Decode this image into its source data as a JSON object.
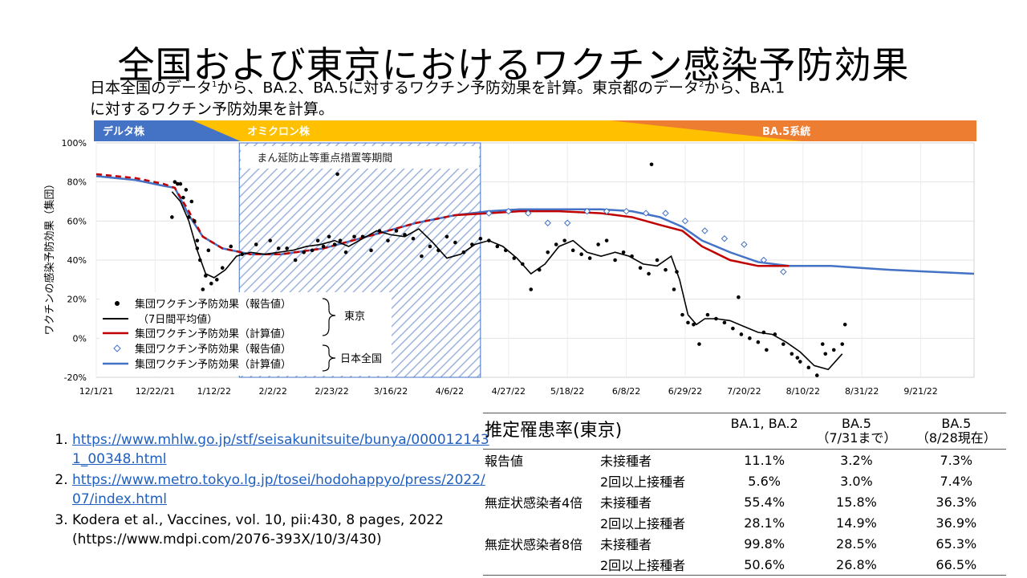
{
  "title": "全国および東京におけるワクチン感染予防効果",
  "subtitle": {
    "line1a": "日本全国のデータ",
    "sup1": "1",
    "line1b": "から、BA.2、BA.5に対するワクチン予防効果を計算。東京都のデータ",
    "sup2": "2",
    "line1c": "から、BA.1",
    "line2": "に対するワクチン予防効果を計算。"
  },
  "variant_bar": [
    {
      "label": "デルタ株",
      "color": "#4472C4"
    },
    {
      "label": "オミクロン株",
      "color": "#FFC000"
    },
    {
      "label": "BA.5系統",
      "color": "#ED7D31"
    }
  ],
  "period_label": "まん延防止等重点措置等期間",
  "legend": {
    "items": [
      {
        "label": "集団ワクチン予防効果（報告値）",
        "marker": "dot"
      },
      {
        "label": "（7日間平均値）",
        "marker": "black-line"
      },
      {
        "label": "集団ワクチン予防効果（計算値）",
        "marker": "red-line"
      },
      {
        "label": "集団ワクチン予防効果（報告値）",
        "marker": "diamond"
      },
      {
        "label": "集団ワクチン予防効果（計算値）",
        "marker": "blue-line"
      }
    ],
    "group_tokyo": "東京",
    "group_national": "日本全国"
  },
  "colors": {
    "red": "#C00000",
    "blue": "#4472C4",
    "black": "#000000",
    "hatch": "#8EA9DB"
  },
  "chart_data": {
    "type": "line",
    "ylabel": "ワクチンの感染予防効果（集団）",
    "ylim": [
      -20,
      100
    ],
    "y_ticks": [
      "100%",
      "80%",
      "60%",
      "40%",
      "20%",
      "0%",
      "-20%"
    ],
    "x_ticks": [
      "12/1/21",
      "12/22/21",
      "1/12/22",
      "2/2/22",
      "2/23/22",
      "3/16/22",
      "4/6/22",
      "4/27/22",
      "5/18/22",
      "6/8/22",
      "6/29/22",
      "7/20/22",
      "8/10/22",
      "8/31/22",
      "9/21/22"
    ],
    "x_start": "2021-12-01",
    "x_end": "2022-10-10",
    "period": {
      "start": "2022-01-21",
      "end": "2022-04-17"
    },
    "series": [
      {
        "name": "集団ワクチン予防効果（計算値）",
        "group": "日本全国",
        "kind": "line",
        "color": "#4472C4",
        "x": [
          "2021-12-01",
          "2021-12-15",
          "2021-12-25",
          "2021-12-29",
          "2022-01-03",
          "2022-01-08",
          "2022-01-15",
          "2022-01-25",
          "2022-02-05",
          "2022-02-20",
          "2022-03-10",
          "2022-03-25",
          "2022-04-08",
          "2022-04-20",
          "2022-05-01",
          "2022-05-15",
          "2022-05-30",
          "2022-06-10",
          "2022-06-20",
          "2022-06-28",
          "2022-07-05",
          "2022-07-15",
          "2022-07-25",
          "2022-08-05",
          "2022-08-20",
          "2022-09-10",
          "2022-10-10"
        ],
        "y": [
          83,
          81,
          78,
          77,
          63,
          52,
          46,
          43,
          43,
          46,
          53,
          59,
          63,
          65,
          66,
          66,
          66,
          65,
          62,
          57,
          50,
          44,
          39,
          37,
          37,
          35,
          33
        ]
      },
      {
        "name": "集団ワクチン予防効果（計算値）",
        "group": "東京",
        "kind": "line",
        "color": "#C00000",
        "x": [
          "2021-12-01",
          "2021-12-15",
          "2021-12-25",
          "2021-12-29",
          "2022-01-03",
          "2022-01-08",
          "2022-01-15",
          "2022-01-25",
          "2022-02-05",
          "2022-02-20",
          "2022-03-10",
          "2022-03-25",
          "2022-04-08",
          "2022-04-20",
          "2022-05-01",
          "2022-05-15",
          "2022-05-30",
          "2022-06-10",
          "2022-06-20",
          "2022-06-28",
          "2022-07-05",
          "2022-07-15",
          "2022-07-25",
          "2022-08-05"
        ],
        "y": [
          84,
          82,
          79,
          77,
          65,
          52,
          46,
          43,
          43,
          46,
          53,
          59,
          63,
          64,
          65,
          65,
          64,
          62,
          58,
          55,
          47,
          40,
          37,
          37
        ],
        "dashed_until": "2022-04-08"
      },
      {
        "name": "（7日間平均値）",
        "group": "東京",
        "kind": "line",
        "color": "#000000",
        "x": [
          "2021-12-28",
          "2021-12-31",
          "2022-01-03",
          "2022-01-06",
          "2022-01-09",
          "2022-01-12",
          "2022-01-16",
          "2022-01-20",
          "2022-01-25",
          "2022-01-30",
          "2022-02-04",
          "2022-02-09",
          "2022-02-14",
          "2022-02-19",
          "2022-02-24",
          "2022-03-01",
          "2022-03-06",
          "2022-03-11",
          "2022-03-16",
          "2022-03-21",
          "2022-03-26",
          "2022-03-31",
          "2022-04-05",
          "2022-04-10",
          "2022-04-15",
          "2022-04-20",
          "2022-04-25",
          "2022-04-30",
          "2022-05-05",
          "2022-05-10",
          "2022-05-15",
          "2022-05-20",
          "2022-05-25",
          "2022-05-30",
          "2022-06-04",
          "2022-06-09",
          "2022-06-14",
          "2022-06-19",
          "2022-06-24",
          "2022-06-27",
          "2022-06-30",
          "2022-07-03",
          "2022-07-06",
          "2022-07-10",
          "2022-07-15",
          "2022-07-20",
          "2022-07-25",
          "2022-07-30",
          "2022-08-04",
          "2022-08-09",
          "2022-08-14",
          "2022-08-19",
          "2022-08-24"
        ],
        "y": [
          75,
          70,
          60,
          45,
          33,
          31,
          35,
          42,
          44,
          43,
          44,
          45,
          47,
          48,
          50,
          47,
          51,
          55,
          53,
          52,
          56,
          49,
          41,
          43,
          48,
          50,
          47,
          41,
          33,
          38,
          47,
          50,
          44,
          42,
          44,
          42,
          38,
          37,
          42,
          30,
          12,
          7,
          10,
          10,
          9,
          6,
          3,
          2,
          -2,
          -7,
          -14,
          -16,
          -8
        ]
      },
      {
        "name": "集団ワクチン予防効果（報告値）",
        "group": "東京",
        "kind": "scatter",
        "marker": "dot",
        "x": [
          "2021-12-28",
          "2021-12-29",
          "2021-12-30",
          "2021-12-31",
          "2022-01-01",
          "2022-01-02",
          "2022-01-03",
          "2022-01-04",
          "2022-01-05",
          "2022-01-06",
          "2022-01-07",
          "2022-01-08",
          "2022-01-09",
          "2022-01-10",
          "2022-01-11",
          "2022-01-13",
          "2022-01-15",
          "2022-01-18",
          "2022-01-22",
          "2022-01-27",
          "2022-02-01",
          "2022-02-04",
          "2022-02-07",
          "2022-02-10",
          "2022-02-13",
          "2022-02-16",
          "2022-02-18",
          "2022-02-20",
          "2022-02-22",
          "2022-02-24",
          "2022-02-26",
          "2022-02-28",
          "2022-03-03",
          "2022-03-06",
          "2022-03-09",
          "2022-03-12",
          "2022-03-15",
          "2022-03-18",
          "2022-03-21",
          "2022-03-24",
          "2022-03-27",
          "2022-03-30",
          "2022-04-02",
          "2022-04-05",
          "2022-04-08",
          "2022-04-11",
          "2022-04-14",
          "2022-04-17",
          "2022-04-20",
          "2022-04-23",
          "2022-04-26",
          "2022-04-29",
          "2022-05-02",
          "2022-05-05",
          "2022-05-08",
          "2022-05-11",
          "2022-05-14",
          "2022-05-17",
          "2022-05-20",
          "2022-05-23",
          "2022-05-26",
          "2022-05-29",
          "2022-06-01",
          "2022-06-04",
          "2022-06-07",
          "2022-06-10",
          "2022-06-13",
          "2022-06-16",
          "2022-06-19",
          "2022-06-22",
          "2022-06-25",
          "2022-06-26",
          "2022-06-28",
          "2022-06-30",
          "2022-07-02",
          "2022-07-04",
          "2022-07-07",
          "2022-07-10",
          "2022-07-13",
          "2022-07-16",
          "2022-07-19",
          "2022-07-22",
          "2022-07-25",
          "2022-07-28",
          "2022-07-31",
          "2022-08-03",
          "2022-08-06",
          "2022-08-09",
          "2022-08-12",
          "2022-08-15",
          "2022-08-18",
          "2022-08-21",
          "2022-08-24",
          "2022-08-25",
          "2022-02-25",
          "2022-06-17",
          "2022-01-06",
          "2022-07-18",
          "2022-07-27",
          "2022-08-08",
          "2022-08-17"
        ],
        "y": [
          62,
          80,
          79,
          79,
          72,
          76,
          62,
          70,
          60,
          50,
          40,
          25,
          32,
          45,
          28,
          30,
          36,
          47,
          43,
          48,
          50,
          46,
          46,
          40,
          44,
          45,
          50,
          47,
          52,
          48,
          50,
          44,
          52,
          52,
          45,
          55,
          50,
          55,
          53,
          51,
          42,
          47,
          45,
          52,
          49,
          44,
          48,
          51,
          50,
          47,
          45,
          41,
          38,
          25,
          35,
          44,
          48,
          50,
          45,
          43,
          41,
          48,
          50,
          40,
          44,
          42,
          36,
          33,
          40,
          35,
          25,
          34,
          12,
          8,
          7,
          -3,
          12,
          10,
          8,
          5,
          2,
          0,
          -2,
          -6,
          2,
          -3,
          -8,
          -12,
          -15,
          -19,
          -8,
          -6,
          -3,
          7,
          84,
          89,
          46,
          21,
          3,
          -10,
          -3
        ]
      },
      {
        "name": "集団ワクチン予防効果（報告値）",
        "group": "日本全国",
        "kind": "scatter",
        "marker": "diamond",
        "x": [
          "2022-04-20",
          "2022-04-27",
          "2022-05-04",
          "2022-05-11",
          "2022-05-18",
          "2022-05-25",
          "2022-06-01",
          "2022-06-08",
          "2022-06-15",
          "2022-06-22",
          "2022-06-29",
          "2022-07-06",
          "2022-07-13",
          "2022-07-20",
          "2022-07-27",
          "2022-08-03"
        ],
        "y": [
          64,
          65,
          64,
          59,
          59,
          65,
          65,
          65,
          64,
          64,
          60,
          55,
          51,
          48,
          40,
          34
        ]
      }
    ]
  },
  "references": [
    {
      "text": "https://www.mhlw.go.jp/stf/seisakunitsuite/bunya/0000121431_00348.html",
      "link": true
    },
    {
      "text": "https://www.metro.tokyo.lg.jp/tosei/hodohappyo/press/2022/07/index.html",
      "link": true
    },
    {
      "text": "Kodera et al., Vaccines, vol. 10, pii:430, 8 pages, 2022 (https://www.mdpi.com/2076-393X/10/3/430)",
      "link": false
    }
  ],
  "table": {
    "title": "推定罹患率(東京)",
    "col1": "BA.1, BA.2",
    "col2_line1": "BA.5",
    "col2_line2": "（7/31まで）",
    "col3_line1": "BA.5",
    "col3_line2": "（8/28現在）",
    "rows": [
      {
        "category": "報告値",
        "group": "未接種者",
        "v1": "11.1%",
        "v2": "3.2%",
        "v3": "7.3%"
      },
      {
        "category": "",
        "group": "2回以上接種者",
        "v1": "5.6%",
        "v2": "3.0%",
        "v3": "7.4%"
      },
      {
        "category": "無症状感染者4倍",
        "group": "未接種者",
        "v1": "55.4%",
        "v2": "15.8%",
        "v3": "36.3%"
      },
      {
        "category": "",
        "group": "2回以上接種者",
        "v1": "28.1%",
        "v2": "14.9%",
        "v3": "36.9%"
      },
      {
        "category": "無症状感染者8倍",
        "group": "未接種者",
        "v1": "99.8%",
        "v2": "28.5%",
        "v3": "65.3%"
      },
      {
        "category": "",
        "group": "2回以上接種者",
        "v1": "50.6%",
        "v2": "26.8%",
        "v3": "66.5%"
      }
    ]
  }
}
